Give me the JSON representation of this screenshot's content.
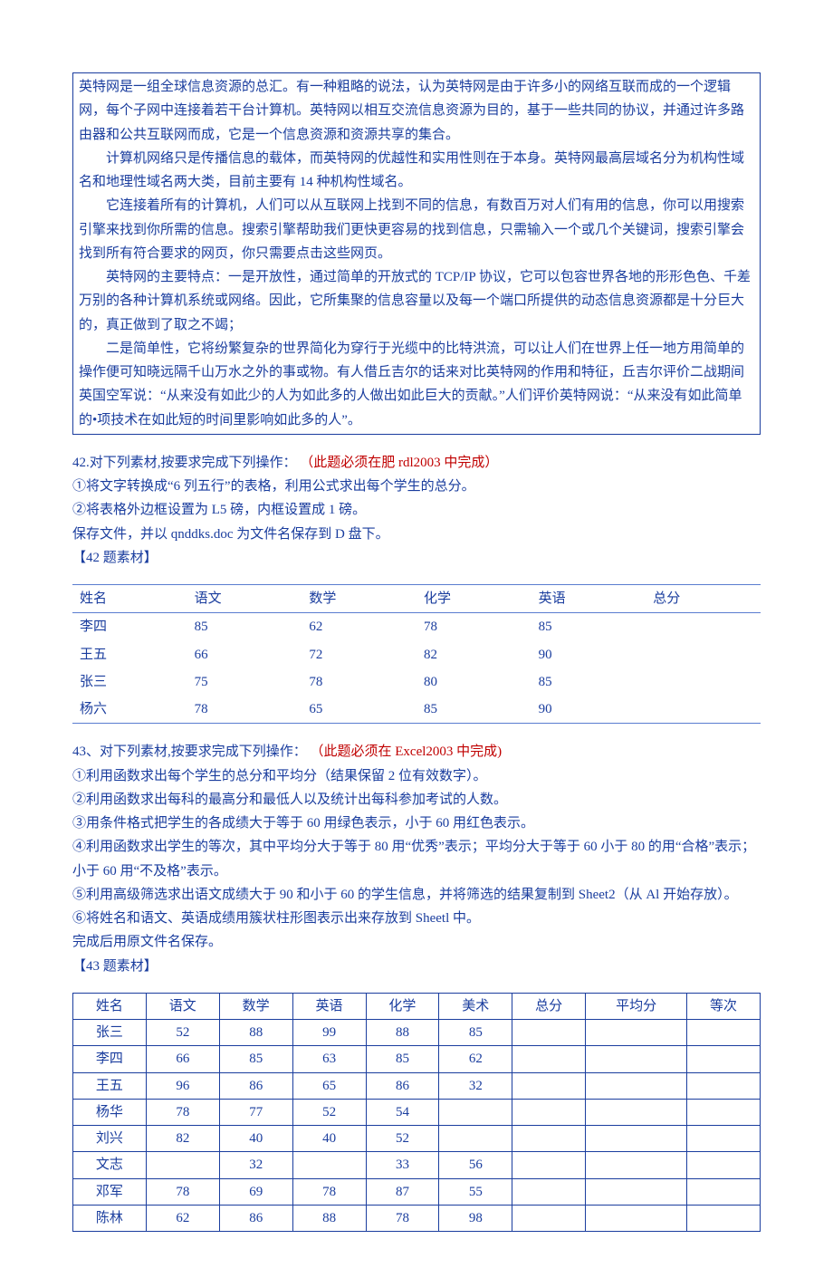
{
  "colors": {
    "text_primary": "#1a3d9e",
    "text_red": "#c00000",
    "border_blue": "#1a3d9e",
    "border_light": "#5a7dd0",
    "background": "#ffffff"
  },
  "typography": {
    "font_family": "SimSun",
    "font_size_pt": 11,
    "line_height": 1.75
  },
  "boxed_passage": {
    "paragraphs": [
      "英特网是一组全球信息资源的总汇。有一种粗略的说法，认为英特网是由于许多小的网络互联而成的一个逻辑网，每个子网中连接着若干台计算机。英特网以相互交流信息资源为目的，基于一些共同的协议，并通过许多路由器和公共互联网而成，它是一个信息资源和资源共享的集合。",
      "计算机网络只是传播信息的载体，而英特网的优越性和实用性则在于本身。英特网最高层域名分为机构性域名和地理性域名两大类，目前主要有 14 种机构性域名。",
      "它连接着所有的计算机，人们可以从互联网上找到不同的信息，有数百万对人们有用的信息，你可以用搜索引擎来找到你所需的信息。搜索引擎帮助我们更快更容易的找到信息，只需输入一个或几个关键词，搜索引擎会找到所有符合要求的网页，你只需要点击这些网页。",
      "英特网的主要特点：一是开放性，通过简单的开放式的 TCP/IP 协议，它可以包容世界各地的形形色色、千差万别的各种计算机系统或网络。因此，它所集聚的信息容量以及每一个端口所提供的动态信息资源都是十分巨大的，真正做到了取之不竭；",
      "二是简单性，它将纷繁复杂的世界简化为穿行于光缆中的比特洪流，可以让人们在世界上任一地方用简单的操作便可知晓远隔千山万水之外的事或物。有人借丘吉尔的话来对比英特网的作用和特征，丘吉尔评价二战期间英国空军说：“从来没有如此少的人为如此多的人做出如此巨大的贡献。”人们评价英特网说：“从来没有如此简单的•项技术在如此短的时间里影响如此多的人”。"
    ]
  },
  "q42": {
    "title_prefix": "42.对下列素材,按要求完成下列操作：",
    "title_red": "（此题必须在肥 rdl2003 中完成）",
    "steps": [
      "①将文字转换成“6 列五行”的表格，利用公式求出每个学生的总分。",
      "②将表格外边框设置为 L5 磅，内框设置成 1 磅。",
      "保存文件，并以 qnddks.doc 为文件名保存到 D 盘下。"
    ],
    "material_label": "【42 题素材】",
    "table": {
      "type": "table",
      "border_color": "#5a7dd0",
      "columns": [
        "姓名",
        "语文",
        "数学",
        "化学",
        "英语",
        "总分"
      ],
      "rows": [
        [
          "李四",
          "85",
          "62",
          "78",
          "85",
          ""
        ],
        [
          "王五",
          "66",
          "72",
          "82",
          "90",
          ""
        ],
        [
          "张三",
          "75",
          "78",
          "80",
          "85",
          ""
        ],
        [
          "杨六",
          "78",
          "65",
          "85",
          "90",
          ""
        ]
      ],
      "column_align": "left"
    }
  },
  "q43": {
    "title_prefix": "43、对下列素材,按要求完成下列操作：",
    "title_red": "（此题必须在 Excel2003 中完成)",
    "steps": [
      "①利用函数求出每个学生的总分和平均分（结果保留 2 位有效数字）。",
      "②利用函数求出每科的最高分和最低人以及统计出每科参加考试的人数。",
      "③用条件格式把学生的各成绩大于等于 60 用绿色表示，小于 60 用红色表示。",
      "④利用函数求出学生的等次，其中平均分大于等于 80 用“优秀”表示；平均分大于等于 60 小于 80 的用“合格”表示；小于 60 用“不及格”表示。",
      "⑤利用高级筛选求出语文成绩大于 90 和小于 60 的学生信息，并将筛选的结果复制到 Sheet2（从 Al 开始存放）。",
      "⑥将姓名和语文、英语成绩用簇状柱形图表示出来存放到 Sheetl 中。",
      "完成后用原文件名保存。"
    ],
    "material_label": "【43 题素材】",
    "table": {
      "type": "table",
      "border_color": "#1a3d9e",
      "columns": [
        "姓名",
        "语文",
        "数学",
        "英语",
        "化学",
        "美术",
        "总分",
        "平均分",
        "等次"
      ],
      "rows": [
        [
          "张三",
          "52",
          "88",
          "99",
          "88",
          "85",
          "",
          "",
          ""
        ],
        [
          "李四",
          "66",
          "85",
          "63",
          "85",
          "62",
          "",
          "",
          ""
        ],
        [
          "王五",
          "96",
          "86",
          "65",
          "86",
          "32",
          "",
          "",
          ""
        ],
        [
          "杨华",
          "78",
          "77",
          "52",
          "54",
          "",
          "",
          "",
          ""
        ],
        [
          "刘兴",
          "82",
          "40",
          "40",
          "52",
          "",
          "",
          "",
          ""
        ],
        [
          "文志",
          "",
          "32",
          "",
          "33",
          "56",
          "",
          "",
          ""
        ],
        [
          "邓军",
          "78",
          "69",
          "78",
          "87",
          "55",
          "",
          "",
          ""
        ],
        [
          "陈林",
          "62",
          "86",
          "88",
          "78",
          "98",
          "",
          "",
          ""
        ]
      ],
      "column_align": "center"
    }
  }
}
